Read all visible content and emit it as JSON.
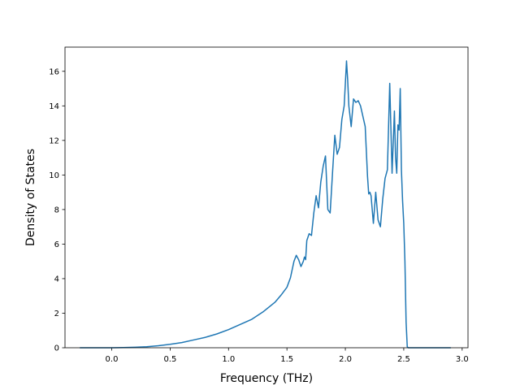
{
  "chart_data": {
    "type": "line",
    "title": "",
    "xlabel": "Frequency (THz)",
    "ylabel": "Density of States",
    "xlim": [
      -0.4,
      3.05
    ],
    "ylim": [
      0,
      17.4
    ],
    "xticks": [
      0.0,
      0.5,
      1.0,
      1.5,
      2.0,
      2.5,
      3.0
    ],
    "xtick_labels": [
      "0.0",
      "0.5",
      "1.0",
      "1.5",
      "2.0",
      "2.5",
      "3.0"
    ],
    "yticks": [
      0,
      2,
      4,
      6,
      8,
      10,
      12,
      14,
      16
    ],
    "ytick_labels": [
      "0",
      "2",
      "4",
      "6",
      "8",
      "10",
      "12",
      "14",
      "16"
    ],
    "grid": false,
    "legend": "none",
    "line_color": "#1f77b4",
    "series": [
      {
        "x": [
          -0.27,
          -0.1,
          0.0,
          0.1,
          0.2,
          0.3,
          0.4,
          0.5,
          0.6,
          0.7,
          0.8,
          0.9,
          1.0,
          1.1,
          1.2,
          1.3,
          1.4,
          1.45,
          1.5,
          1.53,
          1.56,
          1.58,
          1.6,
          1.62,
          1.64,
          1.65,
          1.66,
          1.67,
          1.69,
          1.71,
          1.73,
          1.75,
          1.77,
          1.79,
          1.81,
          1.83,
          1.85,
          1.87,
          1.89,
          1.91,
          1.93,
          1.95,
          1.97,
          1.99,
          2.01,
          2.02,
          2.03,
          2.05,
          2.07,
          2.09,
          2.11,
          2.13,
          2.15,
          2.17,
          2.19,
          2.2,
          2.21,
          2.22,
          2.24,
          2.26,
          2.28,
          2.3,
          2.32,
          2.34,
          2.36,
          2.38,
          2.4,
          2.42,
          2.43,
          2.44,
          2.45,
          2.46,
          2.47,
          2.48,
          2.49,
          2.5,
          2.51,
          2.52,
          2.53,
          2.54,
          2.56,
          2.58,
          2.6,
          2.62,
          2.63,
          2.64,
          2.7,
          2.8,
          2.9
        ],
        "y": [
          0.0,
          0.0,
          0.0,
          0.01,
          0.03,
          0.06,
          0.12,
          0.2,
          0.3,
          0.45,
          0.6,
          0.8,
          1.05,
          1.35,
          1.65,
          2.1,
          2.65,
          3.05,
          3.5,
          4.05,
          5.0,
          5.35,
          5.1,
          4.7,
          5.0,
          5.25,
          5.1,
          6.2,
          6.6,
          6.5,
          7.8,
          8.8,
          8.1,
          9.6,
          10.5,
          11.1,
          8.0,
          7.8,
          10.1,
          12.3,
          11.2,
          11.6,
          13.2,
          14.0,
          16.6,
          15.5,
          14.0,
          12.8,
          14.4,
          14.2,
          14.3,
          14.0,
          13.4,
          12.8,
          9.9,
          8.9,
          9.0,
          8.8,
          7.2,
          9.0,
          7.4,
          7.0,
          8.6,
          9.8,
          10.3,
          15.3,
          10.1,
          13.7,
          11.0,
          10.1,
          12.9,
          12.6,
          15.0,
          10.3,
          8.5,
          7.2,
          5.0,
          1.5,
          0.05,
          0.0,
          0.0,
          0.0,
          0.0,
          0.0,
          0.0,
          0.0,
          0.0,
          0.0,
          0.0
        ]
      }
    ]
  }
}
